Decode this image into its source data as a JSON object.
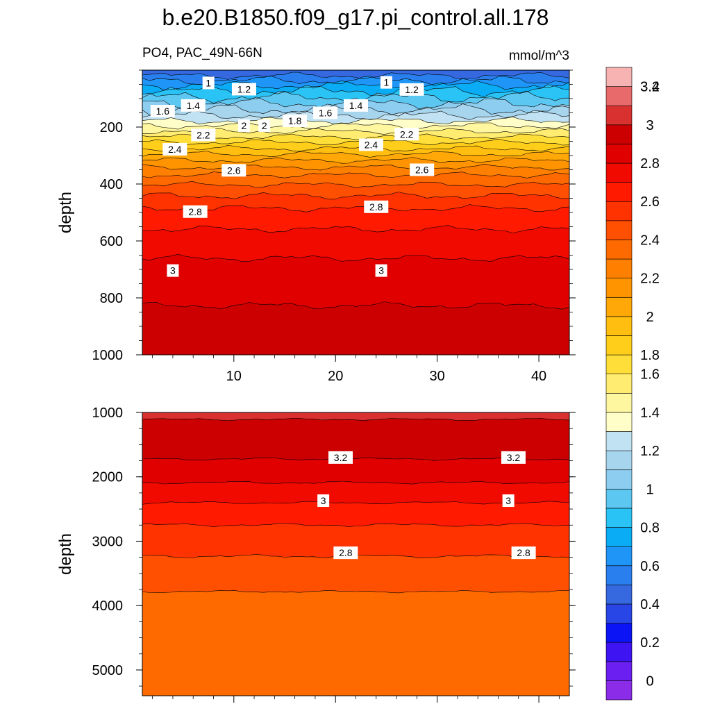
{
  "chart_data": {
    "type": "contour",
    "title": "b.e20.B1850.f09_g17.pi_control.all.178",
    "left_subtitle": "PO4, PAC_49N-66N",
    "right_subtitle": "mmol/m^3",
    "ylabel": "depth",
    "x_ticks": [
      10,
      20,
      30,
      40
    ],
    "xlim": [
      1,
      43
    ],
    "colorbar": {
      "levels": [
        0,
        0.2,
        0.4,
        0.6,
        0.8,
        1,
        1.2,
        1.4,
        1.6,
        1.8,
        2,
        2.2,
        2.4,
        2.6,
        2.8,
        3,
        3.2,
        3.4
      ],
      "labels": [
        "0",
        "0.2",
        "0.4",
        "0.6",
        "0.8",
        "1",
        "1.2",
        "1.4",
        "1.6",
        "1.8",
        "2",
        "2.2",
        "2.4",
        "2.6",
        "2.8",
        "3",
        "3.2",
        "3.4"
      ],
      "colors": [
        "#8a2ce8",
        "#6b1ff0",
        "#3f14f2",
        "#0a14f5",
        "#2846e6",
        "#3668e0",
        "#2a7fee",
        "#1e95f7",
        "#0aadf5",
        "#29c3f5",
        "#5cc8f2",
        "#8ccdf0",
        "#a8d5ee",
        "#c0e2f2",
        "#fffec8",
        "#fff7a0",
        "#ffec70",
        "#ffde3a",
        "#ffce1a",
        "#ffbe10",
        "#ffa808",
        "#ff9400",
        "#ff7f00",
        "#ff6a00",
        "#ff4f00",
        "#ff3300",
        "#ff1a00",
        "#f00a00",
        "#e00000",
        "#cc0000",
        "#d93030",
        "#e86a6a",
        "#f7b2b2"
      ]
    },
    "panels": [
      {
        "name": "upper",
        "ylim": [
          0,
          1000
        ],
        "y_ticks": [
          200,
          400,
          600,
          800,
          1000
        ],
        "x_tick_labels_visible": true,
        "contour_labels": [
          {
            "text": "1",
            "x": 7.5,
            "y": 45
          },
          {
            "text": "1.2",
            "x": 11,
            "y": 67
          },
          {
            "text": "1.4",
            "x": 6,
            "y": 124
          },
          {
            "text": "1.6",
            "x": 3,
            "y": 144
          },
          {
            "text": "2.2",
            "x": 7,
            "y": 228
          },
          {
            "text": "2",
            "x": 11,
            "y": 195
          },
          {
            "text": "2",
            "x": 13,
            "y": 195
          },
          {
            "text": "1.8",
            "x": 16,
            "y": 178
          },
          {
            "text": "1.6",
            "x": 19,
            "y": 150
          },
          {
            "text": "1.4",
            "x": 22,
            "y": 124
          },
          {
            "text": "1",
            "x": 25,
            "y": 43
          },
          {
            "text": "1.2",
            "x": 27.5,
            "y": 68
          },
          {
            "text": "2.2",
            "x": 27,
            "y": 225
          },
          {
            "text": "2.4",
            "x": 4.2,
            "y": 278
          },
          {
            "text": "2.4",
            "x": 23.5,
            "y": 262
          },
          {
            "text": "2.6",
            "x": 10,
            "y": 352
          },
          {
            "text": "2.6",
            "x": 28.5,
            "y": 350
          },
          {
            "text": "2.8",
            "x": 6.2,
            "y": 497
          },
          {
            "text": "2.8",
            "x": 24,
            "y": 480
          },
          {
            "text": "3",
            "x": 4,
            "y": 704
          },
          {
            "text": "3",
            "x": 24.5,
            "y": 704
          }
        ]
      },
      {
        "name": "lower",
        "ylim": [
          1000,
          5400
        ],
        "y_ticks": [
          1000,
          2000,
          3000,
          4000,
          5000
        ],
        "x_tick_labels_visible": false,
        "contour_labels": [
          {
            "text": "3.2",
            "x": 20.5,
            "y": 1700
          },
          {
            "text": "3.2",
            "x": 37.5,
            "y": 1700
          },
          {
            "text": "3",
            "x": 18.8,
            "y": 2370
          },
          {
            "text": "3",
            "x": 37,
            "y": 2370
          },
          {
            "text": "2.8",
            "x": 21,
            "y": 3180
          },
          {
            "text": "2.8",
            "x": 38.5,
            "y": 3180
          }
        ]
      }
    ]
  }
}
